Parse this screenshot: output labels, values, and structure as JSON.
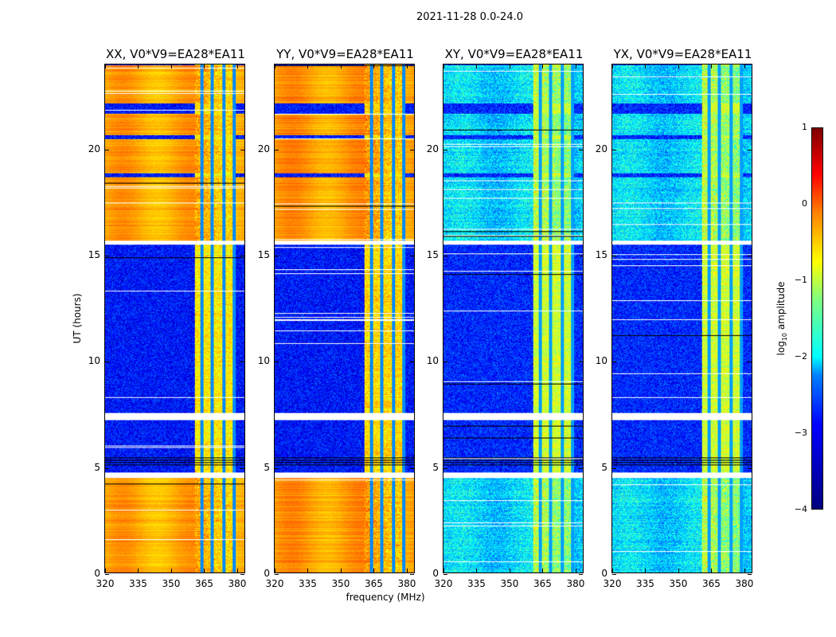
{
  "chart_data": {
    "type": "heatmap",
    "title": "2021-11-28 0.0-24.0",
    "xlabel": "frequency (MHz)",
    "ylabel": "UT (hours)",
    "xlim": [
      320,
      384
    ],
    "ylim": [
      0,
      24
    ],
    "xticks": [
      "320",
      "335",
      "350",
      "365",
      "380"
    ],
    "xtick_values": [
      320,
      335,
      350,
      365,
      380
    ],
    "yticks": [
      "0",
      "5",
      "10",
      "15",
      "20"
    ],
    "ytick_values": [
      0,
      5,
      10,
      15,
      20
    ],
    "colorbar": {
      "label_main": "log",
      "label_sub": "10",
      "label_rest": " amplitude",
      "range": [
        -4,
        1
      ],
      "ticks": [
        "1",
        "0",
        "−1",
        "−2",
        "−3",
        "−4"
      ],
      "tick_values": [
        1,
        0,
        -1,
        -2,
        -3,
        -4
      ],
      "colormap": "jet"
    },
    "rfi_band_mhz": [
      361,
      380
    ],
    "panels": [
      {
        "title": "XX, V0*V9=EA28*EA11",
        "bright_level": -0.45,
        "quiet_level": -3.3,
        "rfi_level": -0.8
      },
      {
        "title": "YY, V0*V9=EA28*EA11",
        "bright_level": -0.4,
        "quiet_level": -3.3,
        "rfi_level": -0.7
      },
      {
        "title": "XY, V0*V9=EA28*EA11",
        "bright_level": -2.3,
        "quiet_level": -3.2,
        "rfi_level": -1.1
      },
      {
        "title": "YX, V0*V9=EA28*EA11",
        "bright_level": -2.3,
        "quiet_level": -3.2,
        "rfi_level": -1.1
      }
    ],
    "time_segments_hours": [
      {
        "from": 0,
        "to": 4.5,
        "state": "bright"
      },
      {
        "from": 4.5,
        "to": 4.75,
        "state": "gap"
      },
      {
        "from": 4.75,
        "to": 7.2,
        "state": "quiet"
      },
      {
        "from": 7.2,
        "to": 7.55,
        "state": "gap"
      },
      {
        "from": 7.55,
        "to": 15.5,
        "state": "quiet"
      },
      {
        "from": 15.5,
        "to": 15.7,
        "state": "gap"
      },
      {
        "from": 15.7,
        "to": 18.7,
        "state": "bright"
      },
      {
        "from": 18.7,
        "to": 18.9,
        "state": "quiet"
      },
      {
        "from": 18.9,
        "to": 20.5,
        "state": "bright"
      },
      {
        "from": 20.5,
        "to": 20.7,
        "state": "quiet"
      },
      {
        "from": 20.7,
        "to": 21.7,
        "state": "bright"
      },
      {
        "from": 21.7,
        "to": 22.2,
        "state": "quiet"
      },
      {
        "from": 22.2,
        "to": 24,
        "state": "bright"
      }
    ]
  }
}
